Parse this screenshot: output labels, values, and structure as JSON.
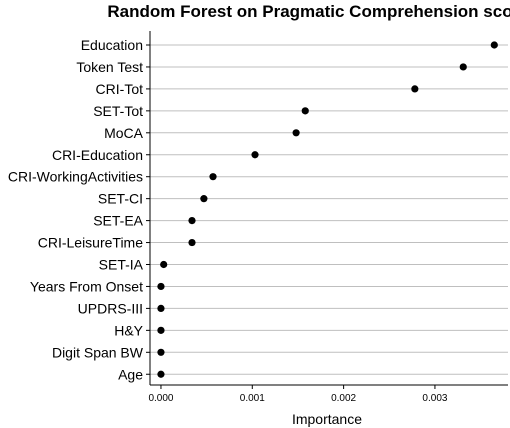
{
  "chart_data": {
    "type": "scatter",
    "title": "Random Forest on Pragmatic Comprehension score",
    "xlabel": "Importance",
    "ylabel": "",
    "xlim": [
      -0.00012,
      0.0038
    ],
    "x_ticks": [
      "0.000",
      "0.001",
      "0.002",
      "0.003"
    ],
    "x_tick_values": [
      0.0,
      0.001,
      0.002,
      0.003
    ],
    "grid": "horizontal",
    "point_color": "#000000",
    "points": [
      {
        "label": "Education",
        "value": 0.00365
      },
      {
        "label": "Token Test",
        "value": 0.00331
      },
      {
        "label": "CRI-Tot",
        "value": 0.00278
      },
      {
        "label": "SET-Tot",
        "value": 0.00158
      },
      {
        "label": "MoCA",
        "value": 0.00148
      },
      {
        "label": "CRI-Education",
        "value": 0.00103
      },
      {
        "label": "CRI-WorkingActivities",
        "value": 0.00057
      },
      {
        "label": "SET-CI",
        "value": 0.00047
      },
      {
        "label": "SET-EA",
        "value": 0.00034
      },
      {
        "label": "CRI-LeisureTime",
        "value": 0.00034
      },
      {
        "label": "SET-IA",
        "value": 3e-05
      },
      {
        "label": "Years From Onset",
        "value": 0.0
      },
      {
        "label": "UPDRS-III",
        "value": 0.0
      },
      {
        "label": "H&Y",
        "value": 0.0
      },
      {
        "label": "Digit Span BW",
        "value": 0.0
      },
      {
        "label": "Age",
        "value": 0.0
      }
    ]
  }
}
